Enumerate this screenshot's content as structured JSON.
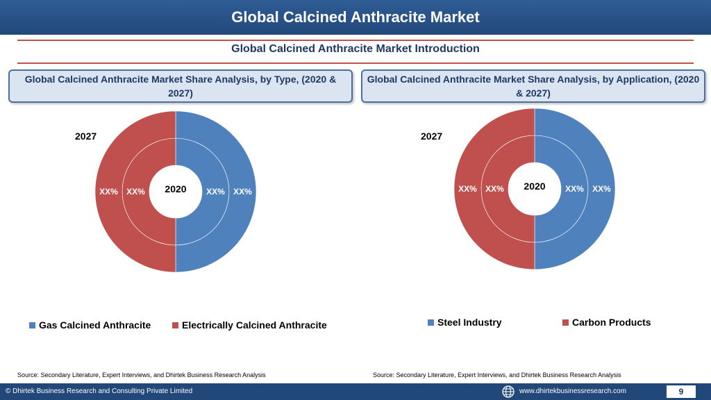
{
  "header": {
    "title": "Global Calcined Anthracite Market"
  },
  "subtitle": "Global Calcined Anthracite Market  Introduction",
  "panels": [
    {
      "title": "Global Calcined Anthracite Market  Share Analysis, by Type, (2020 & 2027)",
      "source": "Source: Secondary Literature, Expert Interviews, and Dhirtek Business Research Analysis"
    },
    {
      "title": "Global Calcined Anthracite Market  Share Analysis, by Application, (2020 & 2027)",
      "source": "Source: Secondary Literature, Expert Interviews, and Dhirtek Business Research Analysis"
    }
  ],
  "chart_data": [
    {
      "type": "pie",
      "subtype": "nested-donut",
      "inner_label": "2020",
      "outer_label": "2027",
      "categories": [
        "Gas Calcined Anthracite",
        "Electrically Calcined Anthracite"
      ],
      "colors": [
        "#4f81bd",
        "#c0504d"
      ],
      "series": [
        {
          "name": "2020",
          "values": [
            50,
            50
          ],
          "labels": [
            "XX%",
            "XX%"
          ]
        },
        {
          "name": "2027",
          "values": [
            50,
            50
          ],
          "labels": [
            "XX%",
            "XX%"
          ]
        }
      ]
    },
    {
      "type": "pie",
      "subtype": "nested-donut",
      "inner_label": "2020",
      "outer_label": "2027",
      "categories": [
        "Steel Industry",
        "Carbon Products"
      ],
      "colors": [
        "#4f81bd",
        "#c0504d"
      ],
      "series": [
        {
          "name": "2020",
          "values": [
            50,
            50
          ],
          "labels": [
            "XX%",
            "XX%"
          ]
        },
        {
          "name": "2027",
          "values": [
            50,
            50
          ],
          "labels": [
            "XX%",
            "XX%"
          ]
        }
      ]
    }
  ],
  "footer": {
    "copyright": "© Dhirtek Business Research and Consulting Private Limited",
    "website": "www.dhirtekbusinessresearch.com",
    "page": "9"
  }
}
